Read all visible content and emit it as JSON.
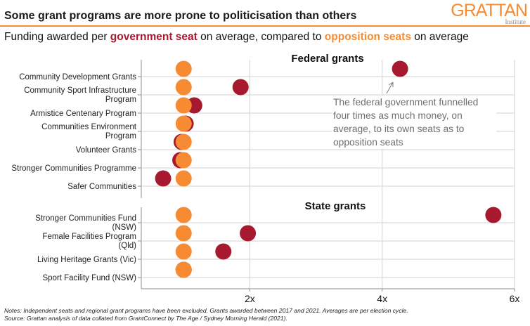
{
  "header": {
    "title": "Some grant programs are more prone to politicisation than others",
    "subtitle_parts": [
      "Funding awarded per ",
      "government seat",
      " on average, compared to ",
      "opposition seats",
      " on average"
    ],
    "logo_main": "GRATTAN",
    "logo_sub": "Institute"
  },
  "footer": {
    "notes": "Notes: Independent seats and regional grant programs have been excluded. Grants awarded between 2017 and 2021. Averages are per election cycle.",
    "source": "Source: Grattan analysis of data collated from GrantConnect by The Age / Sydney Morning Herald (2021)."
  },
  "colors": {
    "government": "#a6192e",
    "opposition": "#f68b33",
    "grid": "#d2d2d2",
    "axis": "#8c8c8c"
  },
  "chart_data": {
    "type": "scatter",
    "title": "Some grant programs are more prone to politicisation than others",
    "subtitle": "Funding awarded per government seat on average, compared to opposition seats on average",
    "xlabel": "",
    "xlim": [
      0.36,
      6
    ],
    "xticks": [
      2,
      4,
      6
    ],
    "xtick_labels": [
      "2x",
      "4x",
      "6x"
    ],
    "grid": true,
    "legend": "in subtitle",
    "series_names": [
      "Government seats",
      "Opposition seats"
    ],
    "panels": [
      {
        "title": "Federal grants",
        "categories": [
          "Community Development Grants",
          "Community Sport Infrastructure Program",
          "Armistice Centenary Program",
          "Communities Environment Program",
          "Volunteer Grants",
          "Stronger Communities Programme",
          "Safer Communities"
        ],
        "labels": [
          [
            "Community Development Grants"
          ],
          [
            "Community Sport Infrastructure",
            "Program"
          ],
          [
            "Armistice Centenary Program"
          ],
          [
            "Communities Environment",
            "Program"
          ],
          [
            "Volunteer Grants"
          ],
          [
            "Stronger Communities Programme"
          ],
          [
            "Safer Communities"
          ]
        ],
        "government": [
          4.27,
          1.86,
          1.16,
          1.03,
          0.97,
          0.95,
          0.69
        ],
        "opposition": [
          1,
          1,
          1,
          1,
          1,
          1,
          1
        ]
      },
      {
        "title": "State grants",
        "categories": [
          "Stronger Communities Fund (NSW)",
          "Female Facilities Program (Qld)",
          "Living Heritage Grants (Vic)",
          "Sport Facility Fund (NSW)"
        ],
        "labels": [
          [
            "Stronger Communities Fund",
            "(NSW)"
          ],
          [
            "Female Facilities Program",
            "(Qld)"
          ],
          [
            "Living Heritage Grants (Vic)"
          ],
          [
            "Sport Facility Fund (NSW)"
          ]
        ],
        "government": [
          5.68,
          1.97,
          1.6,
          1.0
        ],
        "opposition": [
          1,
          1,
          1,
          1
        ]
      }
    ],
    "annotation": "The federal government funnelled four times as much money, on average, to its own seats as to opposition seats"
  }
}
